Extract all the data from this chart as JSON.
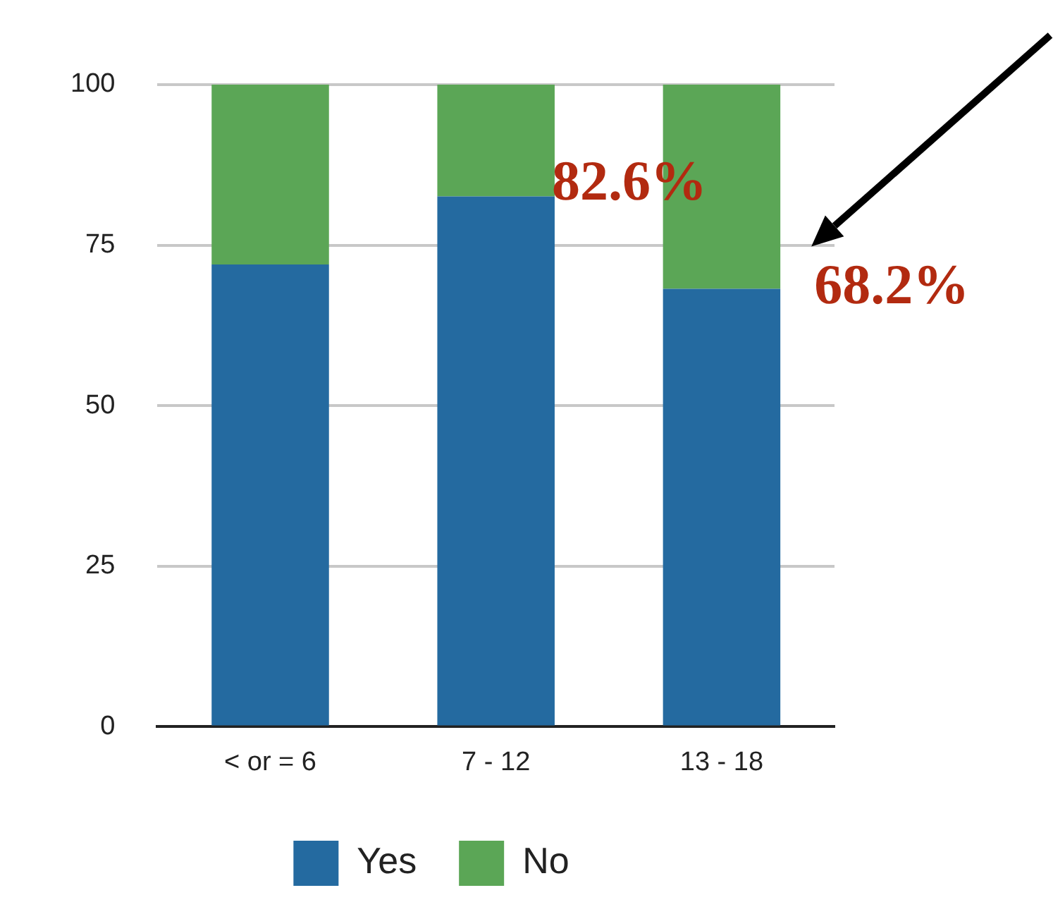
{
  "chart_data": {
    "type": "bar",
    "stacked": true,
    "categories": [
      "< or = 6",
      "7 - 12",
      "13 - 18"
    ],
    "series": [
      {
        "name": "Yes",
        "color": "#246aa0",
        "values": [
          72,
          82.6,
          68.2
        ]
      },
      {
        "name": "No",
        "color": "#5ba656",
        "values": [
          28,
          17.4,
          31.8
        ]
      }
    ],
    "ylim": [
      0,
      100
    ],
    "yticks": [
      0,
      25,
      50,
      75,
      100
    ],
    "grid": "y",
    "legend": "bottom",
    "annotations": [
      {
        "text": "82.6%",
        "x": "7 - 12",
        "y": 82.6
      },
      {
        "text": "68.2%",
        "x": "13 - 18",
        "y": 68.2
      }
    ]
  }
}
